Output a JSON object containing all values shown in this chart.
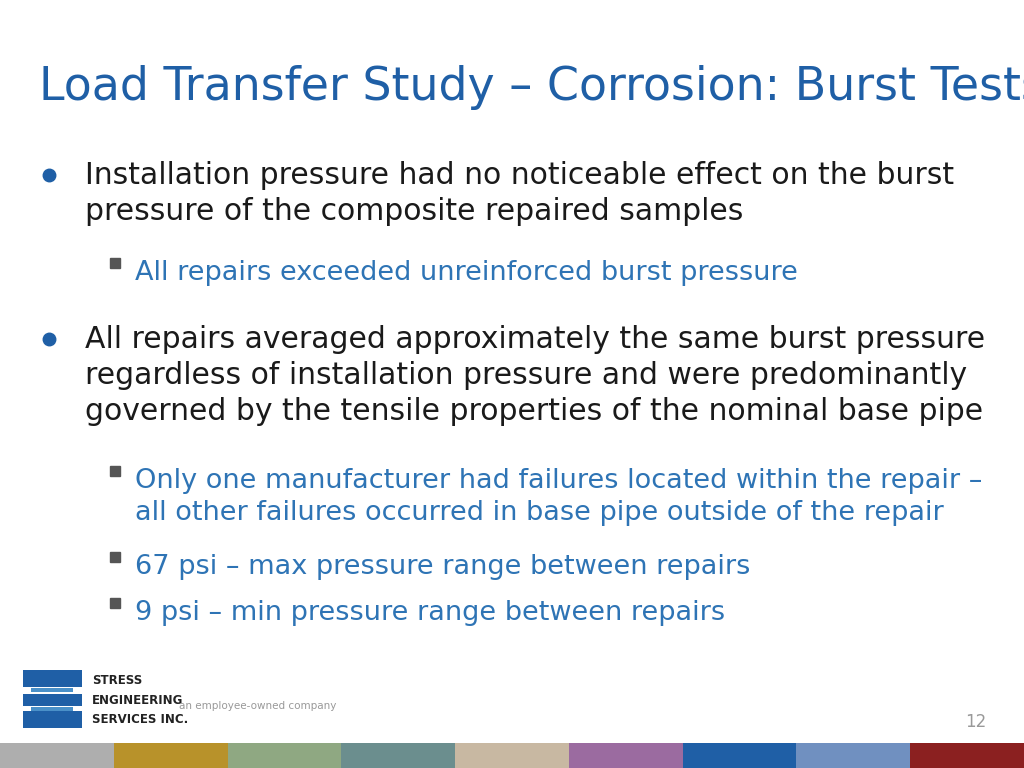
{
  "title": "Load Transfer Study – Corrosion: Burst Tests",
  "title_color": "#1F5FA6",
  "title_fontsize": 33,
  "background_color": "#FFFFFF",
  "bullet_color": "#1a1a1a",
  "bullet_fontsize": 21.5,
  "bullet_dot_color": "#1F5FA6",
  "sub_bullet_color": "#2E74B5",
  "sub_bullet_fontsize": 19.5,
  "page_number": "12",
  "bullets": [
    {
      "text": "Installation pressure had no noticeable effect on the burst\npressure of the composite repaired samples",
      "color": "#1a1a1a",
      "sub_bullets": [
        {
          "text": "All repairs exceeded unreinforced burst pressure",
          "color": "#2E74B5"
        }
      ]
    },
    {
      "text": "All repairs averaged approximately the same burst pressure\nregardless of installation pressure and were predominantly\ngoverned by the tensile properties of the nominal base pipe",
      "color": "#1a1a1a",
      "sub_bullets": [
        {
          "text": "Only one manufacturer had failures located within the repair –\nall other failures occurred in base pipe outside of the repair",
          "color": "#2E74B5"
        },
        {
          "text": "67 psi – max pressure range between repairs",
          "color": "#2E74B5"
        },
        {
          "text": "9 psi – min pressure range between repairs",
          "color": "#2E74B5"
        }
      ]
    }
  ],
  "footer_bar_colors": [
    "#AEAEAE",
    "#B8922A",
    "#8FA882",
    "#6B8E8E",
    "#C8B8A2",
    "#9B6BA0",
    "#1F5FA6",
    "#7090C0",
    "#8B2020"
  ],
  "logo_text_line1": "STRESS",
  "logo_text_line2": "ENGINEERING",
  "logo_text_line3": "SERVICES INC.",
  "logo_subtext": "an employee-owned company"
}
